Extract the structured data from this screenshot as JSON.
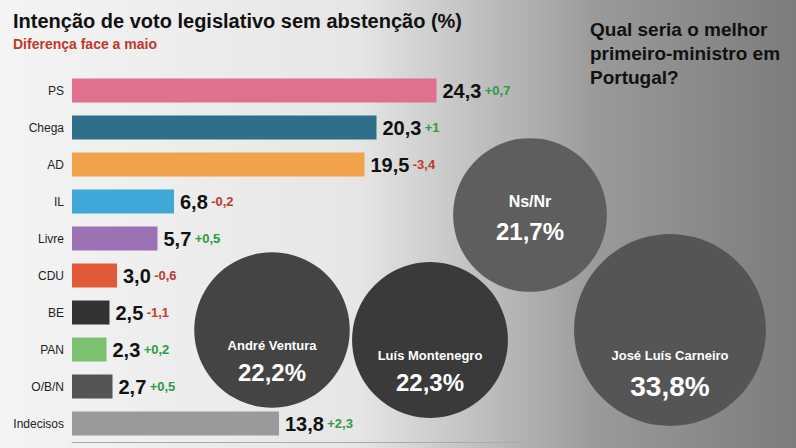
{
  "chart_data": [
    {
      "type": "bar",
      "title": "Intenção de voto legislativo sem abstenção (%)",
      "subtitle": "Diferença face a maio",
      "orientation": "horizontal",
      "categories": [
        "PS",
        "Chega",
        "AD",
        "IL",
        "Livre",
        "CDU",
        "BE",
        "PAN",
        "O/B/N",
        "Indecisos"
      ],
      "values": [
        24.3,
        20.3,
        19.5,
        6.8,
        5.7,
        3.0,
        2.5,
        2.3,
        2.7,
        13.8
      ],
      "value_labels": [
        "24,3",
        "20,3",
        "19,5",
        "6,8",
        "5,7",
        "3,0",
        "2,5",
        "2,3",
        "2,7",
        "13,8"
      ],
      "changes": [
        0.7,
        1,
        -3.4,
        -0.2,
        0.5,
        -0.6,
        -1.1,
        0.2,
        0.5,
        2.3
      ],
      "change_labels": [
        "+0,7",
        "+1",
        "-3,4",
        "-0,2",
        "+0,5",
        "-0,6",
        "-1,1",
        "+0,2",
        "+0,5",
        "+2,3"
      ],
      "colors": [
        "#e0708c",
        "#2f6f8a",
        "#f0a348",
        "#3ea8d8",
        "#9b72b4",
        "#e05a3a",
        "#333333",
        "#7cc070",
        "#555555",
        "#9a9a9a"
      ],
      "xlim": [
        0,
        30
      ],
      "xticks": [],
      "tick_labels": "y",
      "data_labels": true,
      "grid": false
    },
    {
      "type": "bubble",
      "title": "Qual seria o melhor primeiro-ministro em Portugal?",
      "categories": [
        "José Luís Carneiro",
        "Luís Montenegro",
        "André Ventura",
        "Ns/Nr"
      ],
      "values": [
        33.8,
        22.3,
        22.2,
        21.7
      ],
      "value_labels": [
        "33,8%",
        "22,3%",
        "22,2%",
        "21,7%"
      ],
      "colors": [
        "#555555",
        "#3a3a3a",
        "#444444",
        "#5e5e5e"
      ],
      "data_labels": true
    }
  ]
}
